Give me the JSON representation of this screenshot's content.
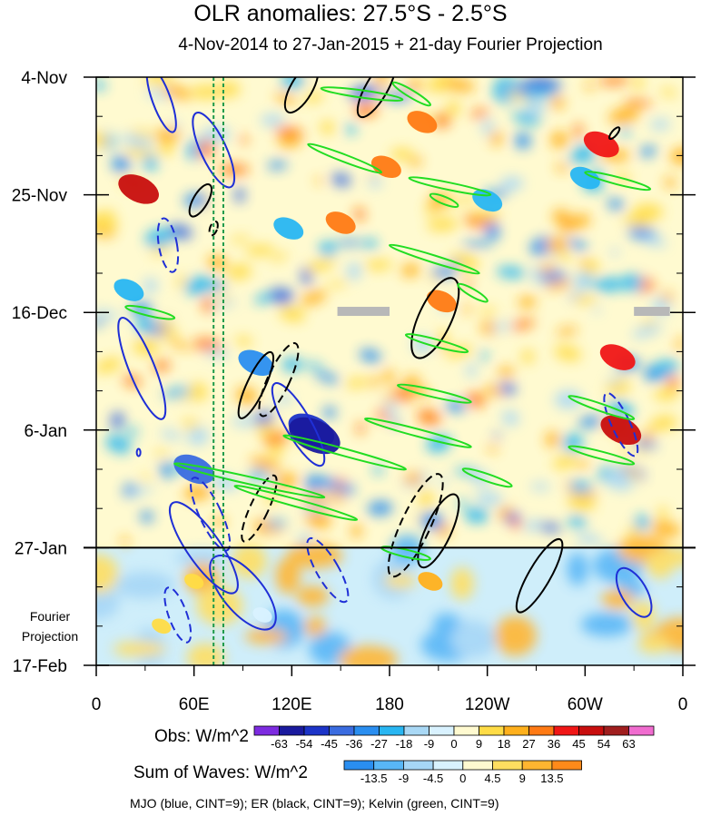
{
  "chart_data": {
    "type": "heatmap",
    "title": "OLR anomalies: 27.5°S - 2.5°S",
    "subtitle": "4-Nov-2014 to 27-Jan-2015 + 21-day Fourier Projection",
    "x_tick_labels": [
      "0",
      "60E",
      "120E",
      "180",
      "120W",
      "60W",
      "0"
    ],
    "x_ticks_deg": [
      0,
      60,
      120,
      180,
      240,
      300,
      360
    ],
    "xlim": [
      0,
      360
    ],
    "y_tick_labels": [
      "4-Nov",
      "25-Nov",
      "16-Dec",
      "6-Jan",
      "27-Jan",
      "17-Feb"
    ],
    "y_ticks_day": [
      0,
      21,
      42,
      63,
      84,
      105
    ],
    "ylim_day": [
      0,
      105
    ],
    "projection_start_day": 84,
    "projection_label": [
      "Fourier",
      "Projection"
    ],
    "obs_colorbar": {
      "label": "Obs: W/m^2",
      "levels": [
        "-63",
        "-54",
        "-45",
        "-36",
        "-27",
        "-18",
        "-9",
        "0",
        "9",
        "18",
        "27",
        "36",
        "45",
        "54",
        "63"
      ],
      "colors": [
        "#7d2be0",
        "#1a1a9e",
        "#1c34c8",
        "#3a6ce0",
        "#2a8ef0",
        "#28b6f2",
        "#a9d8f5",
        "#d9f2ff",
        "#fffad0",
        "#ffdc46",
        "#ffb01c",
        "#ff7a14",
        "#f01616",
        "#c80e0e",
        "#a01e1e",
        "#f06ccf"
      ]
    },
    "waves_colorbar": {
      "label": "Sum of Waves: W/m^2",
      "levels": [
        "-13.5",
        "-9",
        "-4.5",
        "0",
        "4.5",
        "9",
        "13.5"
      ],
      "colors": [
        "#2a8ef0",
        "#58b6f6",
        "#a6d6f6",
        "#d8f2ff",
        "#fffad0",
        "#ffde60",
        "#ffb530",
        "#ff8a1a"
      ]
    },
    "footnote": "MJO (blue, CINT=9); ER (black, CINT=9); Kelvin (green, CINT=9)",
    "wave_colors": {
      "mjo": "#1f2fd6",
      "er": "#000000",
      "kelvin": "#22dd22"
    },
    "reference_lines_deg": [
      {
        "lon": 72,
        "color": "#1c9a4a"
      },
      {
        "lon": 78,
        "color": "#1c9a4a"
      }
    ],
    "observed_features": [
      {
        "lon": 132,
        "day": 63,
        "value": -54
      },
      {
        "lon": 134,
        "day": 64,
        "value": -63
      },
      {
        "lon": 98,
        "day": 51,
        "value": -36
      },
      {
        "lon": 26,
        "day": 20,
        "value": 45
      },
      {
        "lon": 200,
        "day": 8,
        "value": 27
      },
      {
        "lon": 212,
        "day": 40,
        "value": 27
      },
      {
        "lon": 178,
        "day": 16,
        "value": 27
      },
      {
        "lon": 150,
        "day": 26,
        "value": 27
      },
      {
        "lon": 205,
        "day": 90,
        "value": 18
      },
      {
        "lon": 322,
        "day": 63,
        "value": 45
      },
      {
        "lon": 320,
        "day": 50,
        "value": 36
      },
      {
        "lon": 310,
        "day": 12,
        "value": 36
      },
      {
        "lon": 60,
        "day": 70,
        "value": -45
      },
      {
        "lon": 20,
        "day": 38,
        "value": -27
      },
      {
        "lon": 240,
        "day": 22,
        "value": -27
      },
      {
        "lon": 118,
        "day": 27,
        "value": -27
      },
      {
        "lon": 300,
        "day": 18,
        "value": -27
      },
      {
        "lon": 102,
        "day": 96,
        "value": -9
      },
      {
        "lon": 40,
        "day": 98,
        "value": 9
      },
      {
        "lon": 60,
        "day": 90,
        "value": 9
      }
    ],
    "grid": false
  }
}
